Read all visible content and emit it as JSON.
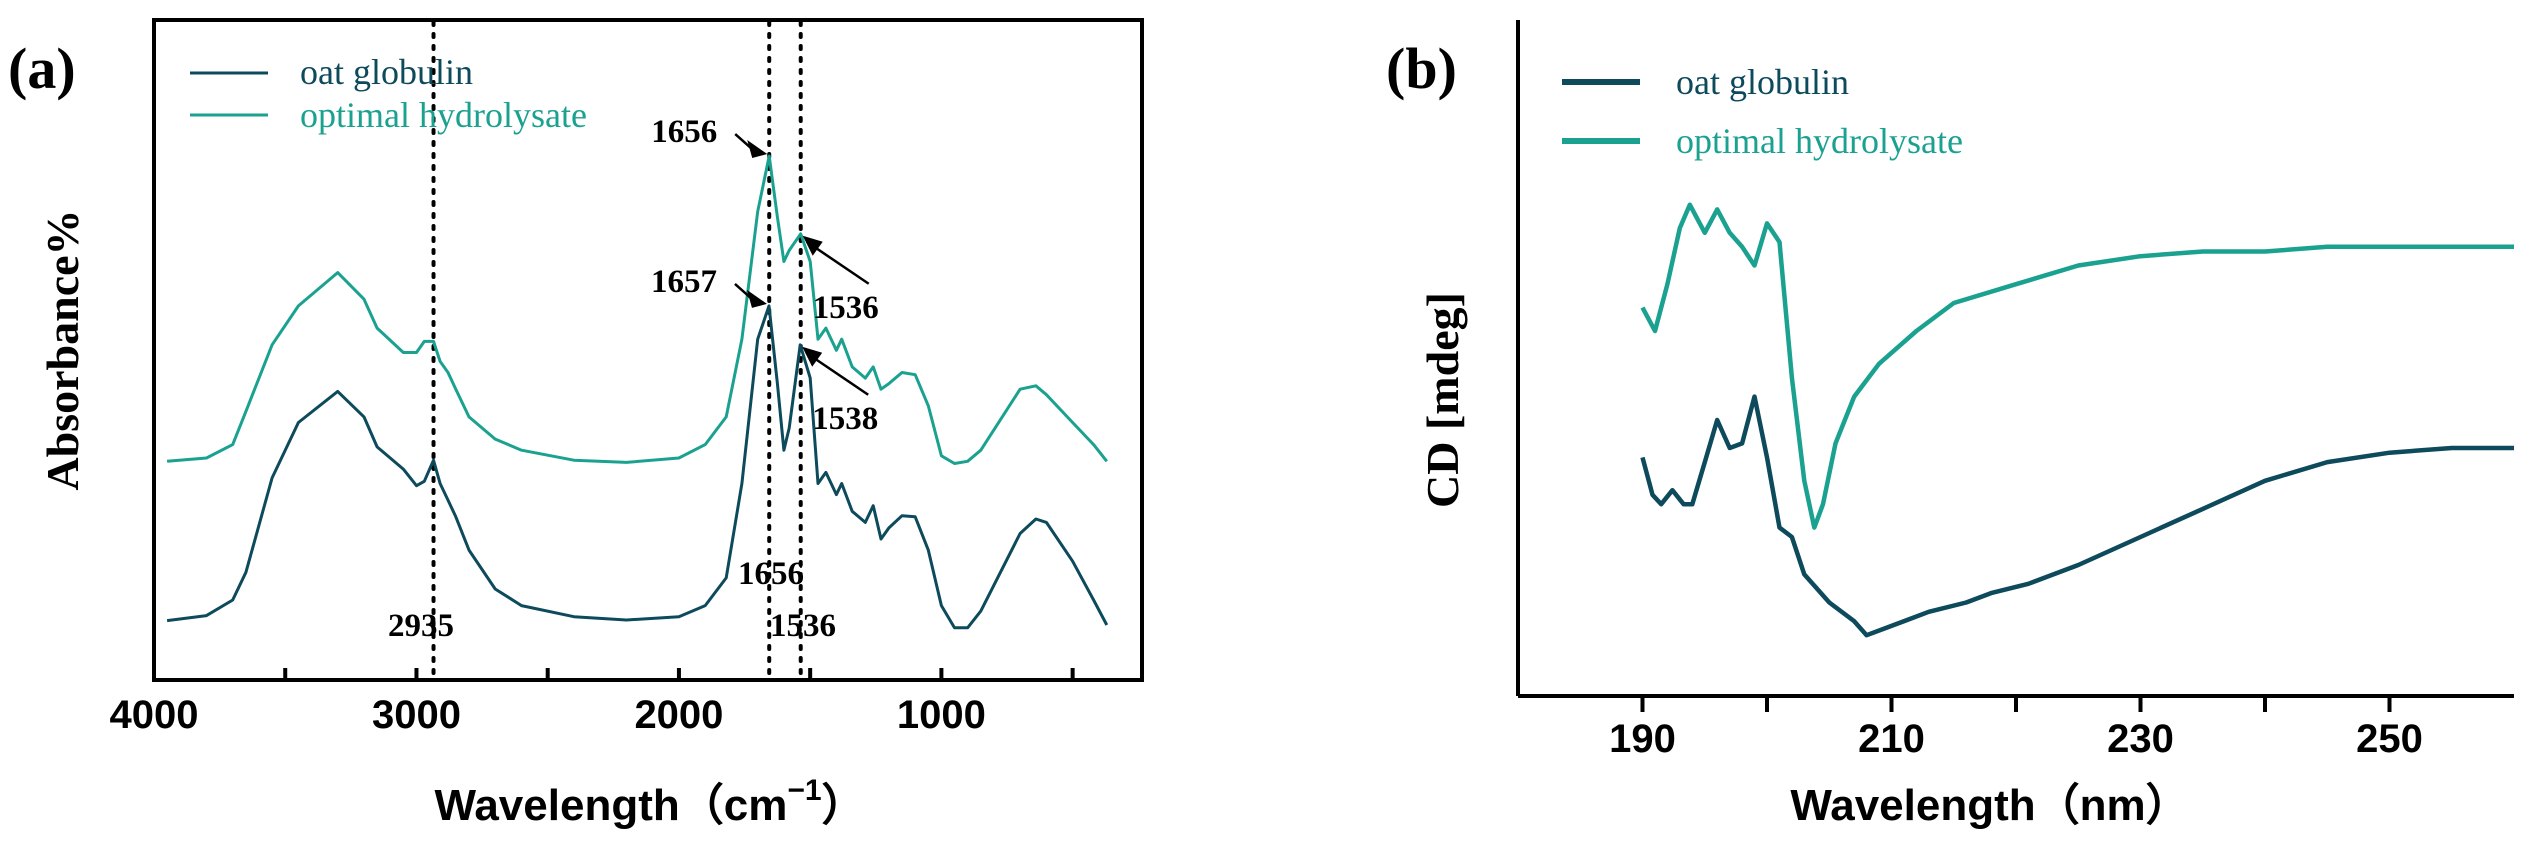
{
  "colors": {
    "globulin": "#0d4a5c",
    "hydrolysate": "#1aa190",
    "axis": "#000000"
  },
  "chart_data": [
    {
      "type": "line",
      "panel_label": "(a)",
      "xlabel": "Wavelength（cm",
      "xlabel_exp": "−1",
      "xlabel_close": "）",
      "ylabel": "Absorbance%",
      "xlim": [
        4000,
        350
      ],
      "ylim": [
        0,
        1
      ],
      "x_ticks": [
        4000,
        3000,
        2000,
        1000
      ],
      "x_tick_labels": [
        "4000",
        "3000",
        "2000",
        "1000"
      ],
      "legend": [
        "oat globulin",
        "optimal hydrolysate"
      ],
      "legend_position": "top-left",
      "series": [
        {
          "name": "oat globulin",
          "points": [
            [
              3950,
              0.053
            ],
            [
              3800,
              0.062
            ],
            [
              3700,
              0.09
            ],
            [
              3650,
              0.14
            ],
            [
              3550,
              0.31
            ],
            [
              3450,
              0.41
            ],
            [
              3300,
              0.466
            ],
            [
              3200,
              0.42
            ],
            [
              3150,
              0.366
            ],
            [
              3050,
              0.326
            ],
            [
              3000,
              0.296
            ],
            [
              2970,
              0.304
            ],
            [
              2935,
              0.342
            ],
            [
              2910,
              0.3
            ],
            [
              2880,
              0.27
            ],
            [
              2850,
              0.24
            ],
            [
              2800,
              0.18
            ],
            [
              2700,
              0.11
            ],
            [
              2600,
              0.08
            ],
            [
              2400,
              0.06
            ],
            [
              2200,
              0.054
            ],
            [
              2000,
              0.06
            ],
            [
              1900,
              0.08
            ],
            [
              1820,
              0.13
            ],
            [
              1760,
              0.3
            ],
            [
              1700,
              0.56
            ],
            [
              1657,
              0.62
            ],
            [
              1625,
              0.48
            ],
            [
              1600,
              0.36
            ],
            [
              1580,
              0.4
            ],
            [
              1538,
              0.55
            ],
            [
              1500,
              0.49
            ],
            [
              1470,
              0.3
            ],
            [
              1440,
              0.32
            ],
            [
              1400,
              0.28
            ],
            [
              1380,
              0.3
            ],
            [
              1340,
              0.25
            ],
            [
              1290,
              0.23
            ],
            [
              1260,
              0.26
            ],
            [
              1230,
              0.2
            ],
            [
              1200,
              0.22
            ],
            [
              1150,
              0.242
            ],
            [
              1100,
              0.24
            ],
            [
              1050,
              0.18
            ],
            [
              1000,
              0.08
            ],
            [
              950,
              0.04
            ],
            [
              900,
              0.04
            ],
            [
              850,
              0.07
            ],
            [
              700,
              0.21
            ],
            [
              640,
              0.236
            ],
            [
              600,
              0.23
            ],
            [
              500,
              0.16
            ],
            [
              420,
              0.09
            ],
            [
              370,
              0.045
            ]
          ]
        },
        {
          "name": "optimal hydrolysate",
          "points": [
            [
              3950,
              0.34
            ],
            [
              3800,
              0.346
            ],
            [
              3700,
              0.37
            ],
            [
              3650,
              0.43
            ],
            [
              3550,
              0.55
            ],
            [
              3450,
              0.62
            ],
            [
              3300,
              0.68
            ],
            [
              3200,
              0.632
            ],
            [
              3150,
              0.58
            ],
            [
              3050,
              0.536
            ],
            [
              3000,
              0.536
            ],
            [
              2970,
              0.556
            ],
            [
              2935,
              0.556
            ],
            [
              2910,
              0.52
            ],
            [
              2880,
              0.5
            ],
            [
              2850,
              0.47
            ],
            [
              2800,
              0.42
            ],
            [
              2700,
              0.38
            ],
            [
              2600,
              0.36
            ],
            [
              2400,
              0.342
            ],
            [
              2200,
              0.338
            ],
            [
              2000,
              0.346
            ],
            [
              1900,
              0.37
            ],
            [
              1820,
              0.42
            ],
            [
              1760,
              0.56
            ],
            [
              1700,
              0.79
            ],
            [
              1656,
              0.89
            ],
            [
              1625,
              0.78
            ],
            [
              1600,
              0.7
            ],
            [
              1580,
              0.72
            ],
            [
              1536,
              0.75
            ],
            [
              1500,
              0.7
            ],
            [
              1470,
              0.56
            ],
            [
              1440,
              0.58
            ],
            [
              1400,
              0.54
            ],
            [
              1380,
              0.56
            ],
            [
              1340,
              0.51
            ],
            [
              1290,
              0.49
            ],
            [
              1260,
              0.51
            ],
            [
              1230,
              0.47
            ],
            [
              1200,
              0.48
            ],
            [
              1150,
              0.5
            ],
            [
              1100,
              0.496
            ],
            [
              1050,
              0.44
            ],
            [
              1000,
              0.35
            ],
            [
              950,
              0.336
            ],
            [
              900,
              0.34
            ],
            [
              850,
              0.36
            ],
            [
              700,
              0.47
            ],
            [
              640,
              0.476
            ],
            [
              600,
              0.46
            ],
            [
              500,
              0.41
            ],
            [
              420,
              0.37
            ],
            [
              370,
              0.34
            ]
          ]
        }
      ],
      "reference_lines": [
        2935,
        1656,
        1536
      ],
      "annotations": [
        {
          "text": "1656",
          "x": 1656,
          "y": 0.89,
          "side": "left"
        },
        {
          "text": "1657",
          "x": 1657,
          "y": 0.62,
          "side": "left"
        },
        {
          "text": "1536",
          "x": 1536,
          "y": 0.75,
          "side": "right"
        },
        {
          "text": "1538",
          "x": 1538,
          "y": 0.55,
          "side": "right"
        }
      ],
      "bottom_labels": [
        "2935",
        "1656",
        "1536"
      ]
    },
    {
      "type": "line",
      "panel_label": "(b)",
      "xlabel": "Wavelength（nm）",
      "ylabel": "CD [mdeg]",
      "xlim": [
        180,
        260
      ],
      "ylim": [
        0,
        1
      ],
      "x_ticks": [
        190,
        210,
        230,
        250
      ],
      "x_tick_labels": [
        "190",
        "210",
        "230",
        "250"
      ],
      "legend": [
        "oat globulin",
        "optimal hydrolysate"
      ],
      "legend_position": "top-left",
      "series": [
        {
          "name": "oat globulin",
          "points": [
            [
              190,
              0.45
            ],
            [
              190.8,
              0.37
            ],
            [
              191.5,
              0.35
            ],
            [
              192.4,
              0.38
            ],
            [
              193.3,
              0.35
            ],
            [
              194,
              0.35
            ],
            [
              195,
              0.44
            ],
            [
              196,
              0.53
            ],
            [
              197,
              0.47
            ],
            [
              198,
              0.48
            ],
            [
              199,
              0.58
            ],
            [
              200,
              0.45
            ],
            [
              201,
              0.3
            ],
            [
              202,
              0.28
            ],
            [
              203,
              0.2
            ],
            [
              205,
              0.14
            ],
            [
              207,
              0.1
            ],
            [
              208,
              0.07
            ],
            [
              210,
              0.09
            ],
            [
              213,
              0.12
            ],
            [
              216,
              0.14
            ],
            [
              218,
              0.16
            ],
            [
              221,
              0.18
            ],
            [
              225,
              0.22
            ],
            [
              230,
              0.28
            ],
            [
              235,
              0.34
            ],
            [
              240,
              0.4
            ],
            [
              245,
              0.44
            ],
            [
              250,
              0.46
            ],
            [
              255,
              0.47
            ],
            [
              260,
              0.47
            ]
          ]
        },
        {
          "name": "optimal hydrolysate",
          "points": [
            [
              190,
              0.77
            ],
            [
              191,
              0.72
            ],
            [
              192,
              0.82
            ],
            [
              193,
              0.94
            ],
            [
              193.8,
              0.99
            ],
            [
              195,
              0.93
            ],
            [
              196,
              0.98
            ],
            [
              197,
              0.93
            ],
            [
              198,
              0.9
            ],
            [
              199,
              0.86
            ],
            [
              200,
              0.95
            ],
            [
              201,
              0.91
            ],
            [
              202,
              0.62
            ],
            [
              203,
              0.4
            ],
            [
              203.8,
              0.3
            ],
            [
              204.5,
              0.35
            ],
            [
              205.5,
              0.48
            ],
            [
              207,
              0.58
            ],
            [
              209,
              0.65
            ],
            [
              212,
              0.72
            ],
            [
              215,
              0.78
            ],
            [
              220,
              0.82
            ],
            [
              225,
              0.86
            ],
            [
              230,
              0.88
            ],
            [
              235,
              0.89
            ],
            [
              240,
              0.89
            ],
            [
              245,
              0.9
            ],
            [
              250,
              0.9
            ],
            [
              255,
              0.9
            ],
            [
              260,
              0.9
            ]
          ]
        }
      ]
    }
  ]
}
